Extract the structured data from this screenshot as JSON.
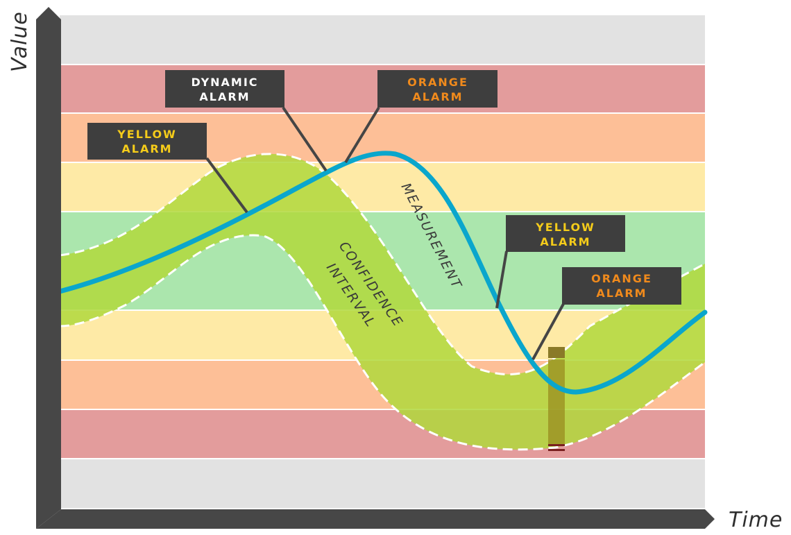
{
  "axes": {
    "y_label": "Value",
    "x_label": "Time"
  },
  "labels": {
    "measurement": "MEASUREMENT",
    "confidence_line1": "CONFIDENCE",
    "confidence_line2": "INTERVAL"
  },
  "callouts": [
    {
      "id": "dynamic-alarm",
      "line1": "DYNAMIC",
      "line2": "ALARM",
      "color": "#ffffff"
    },
    {
      "id": "orange-alarm-top",
      "line1": "ORANGE",
      "line2": "ALARM",
      "color": "#f08a1c"
    },
    {
      "id": "yellow-alarm-left",
      "line1": "YELLOW",
      "line2": "ALARM",
      "color": "#f5cc1a"
    },
    {
      "id": "yellow-alarm-right",
      "line1": "YELLOW",
      "line2": "ALARM",
      "color": "#f5cc1a"
    },
    {
      "id": "orange-alarm-right",
      "line1": "ORANGE",
      "line2": "ALARM",
      "color": "#f08a1c"
    }
  ],
  "colors": {
    "axis": "#474747",
    "band_gray": "#e2e2e2",
    "band_red": "#e39c9c",
    "band_orange": "#fdbf97",
    "band_yellow": "#feeaa6",
    "band_green": "#abe6ad",
    "confidence_fill": "#b0d83c",
    "measurement_line": "#0aa6cc",
    "callout_bg": "#3e3e3e",
    "marker": "#8a7a28"
  }
}
